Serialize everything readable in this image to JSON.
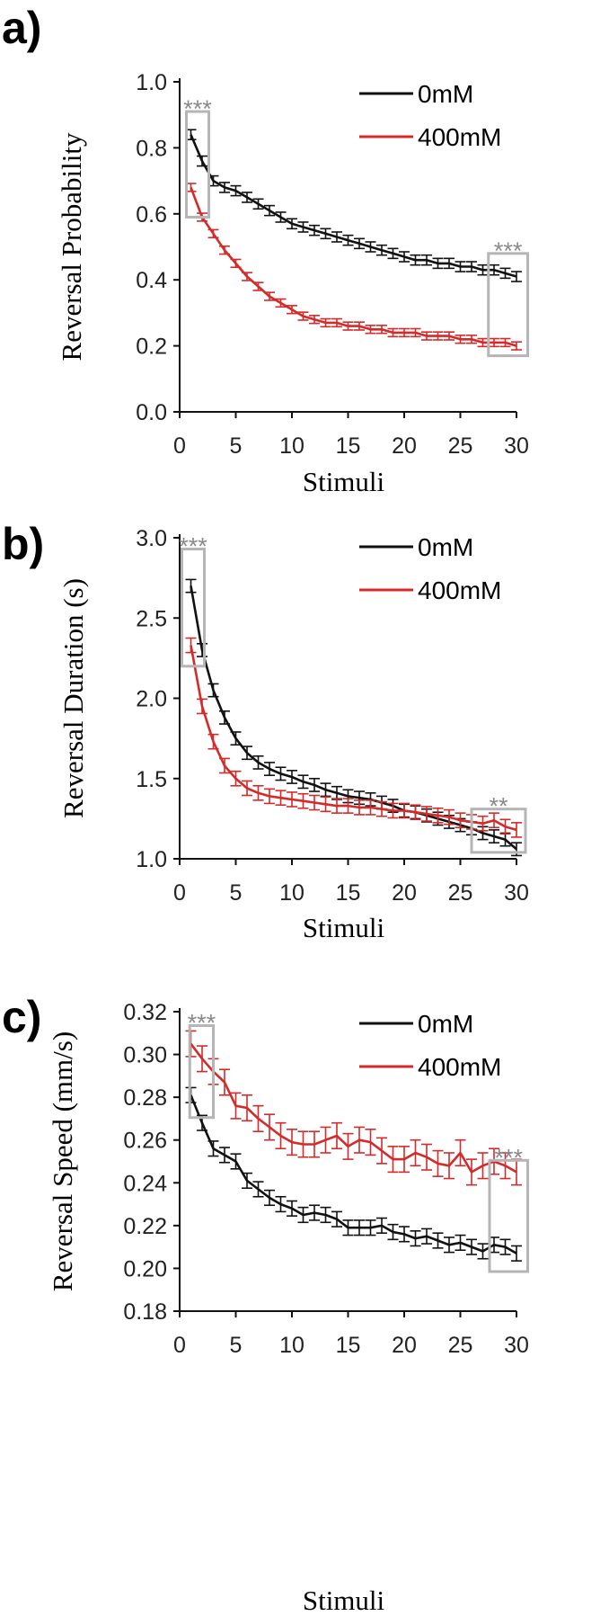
{
  "colors": {
    "control": "#111111",
    "treated": "#d42a2a",
    "sig_box": "#b5b5b5",
    "sig_text": "#8a8a8a"
  },
  "chart_data": [
    {
      "type": "line",
      "panel": "a)",
      "title": "",
      "xlabel": "Stimuli",
      "ylabel": "Reversal Probability",
      "xlim": [
        0,
        30
      ],
      "ylim": [
        0.0,
        1.0
      ],
      "xticks": [
        0,
        5,
        10,
        15,
        20,
        25,
        30
      ],
      "yticks": [
        0.0,
        0.2,
        0.4,
        0.6,
        0.8,
        1.0
      ],
      "ytick_labels": [
        "0.0",
        "0.2",
        "0.4",
        "0.6",
        "0.8",
        "1.0"
      ],
      "legend": "top-right",
      "x": [
        1,
        2,
        3,
        4,
        5,
        6,
        7,
        8,
        9,
        10,
        11,
        12,
        13,
        14,
        15,
        16,
        17,
        18,
        19,
        20,
        21,
        22,
        23,
        24,
        25,
        26,
        27,
        28,
        29,
        30
      ],
      "series": [
        {
          "name": "0mM",
          "color": "#111111",
          "error": 0.015,
          "values": [
            0.84,
            0.76,
            0.7,
            0.68,
            0.67,
            0.65,
            0.63,
            0.61,
            0.59,
            0.57,
            0.56,
            0.55,
            0.54,
            0.53,
            0.52,
            0.51,
            0.5,
            0.49,
            0.48,
            0.47,
            0.46,
            0.46,
            0.45,
            0.45,
            0.44,
            0.44,
            0.43,
            0.43,
            0.42,
            0.41
          ]
        },
        {
          "name": "400mM",
          "color": "#d42a2a",
          "error": 0.012,
          "values": [
            0.68,
            0.59,
            0.54,
            0.49,
            0.45,
            0.41,
            0.38,
            0.35,
            0.33,
            0.31,
            0.29,
            0.28,
            0.27,
            0.27,
            0.26,
            0.26,
            0.25,
            0.25,
            0.24,
            0.24,
            0.24,
            0.23,
            0.23,
            0.23,
            0.22,
            0.22,
            0.21,
            0.21,
            0.21,
            0.2
          ]
        }
      ],
      "annotations": [
        {
          "text": "***",
          "x_range": [
            0.6,
            2.6
          ],
          "y_range": [
            0.59,
            0.91
          ]
        },
        {
          "text": "***",
          "x_range": [
            27.5,
            31.0
          ],
          "y_range": [
            0.17,
            0.48
          ]
        }
      ]
    },
    {
      "type": "line",
      "panel": "b)",
      "title": "",
      "xlabel": "Stimuli",
      "ylabel": "Reversal Duration (s)",
      "xlim": [
        0,
        30
      ],
      "ylim": [
        1.0,
        3.0
      ],
      "xticks": [
        0,
        5,
        10,
        15,
        20,
        25,
        30
      ],
      "yticks": [
        1.0,
        1.5,
        2.0,
        2.5,
        3.0
      ],
      "ytick_labels": [
        "1.0",
        "1.5",
        "2.0",
        "2.5",
        "3.0"
      ],
      "legend": "top-right",
      "x": [
        1,
        2,
        3,
        4,
        5,
        6,
        7,
        8,
        9,
        10,
        11,
        12,
        13,
        14,
        15,
        16,
        17,
        18,
        19,
        20,
        21,
        22,
        23,
        24,
        25,
        26,
        27,
        28,
        29,
        30
      ],
      "series": [
        {
          "name": "0mM",
          "color": "#111111",
          "error": 0.04,
          "values": [
            2.7,
            2.3,
            2.05,
            1.88,
            1.75,
            1.66,
            1.6,
            1.56,
            1.53,
            1.51,
            1.48,
            1.46,
            1.43,
            1.41,
            1.39,
            1.38,
            1.37,
            1.35,
            1.33,
            1.3,
            1.29,
            1.27,
            1.25,
            1.23,
            1.21,
            1.19,
            1.16,
            1.14,
            1.12,
            1.06
          ]
        },
        {
          "name": "400mM",
          "color": "#d42a2a",
          "error": 0.045,
          "values": [
            2.33,
            1.95,
            1.73,
            1.58,
            1.5,
            1.44,
            1.41,
            1.39,
            1.38,
            1.37,
            1.36,
            1.35,
            1.34,
            1.33,
            1.33,
            1.32,
            1.32,
            1.31,
            1.3,
            1.3,
            1.29,
            1.28,
            1.27,
            1.26,
            1.24,
            1.23,
            1.22,
            1.24,
            1.2,
            1.18
          ]
        }
      ],
      "annotations": [
        {
          "text": "***",
          "x_range": [
            0.2,
            2.2
          ],
          "y_range": [
            2.2,
            2.93
          ]
        },
        {
          "text": "**",
          "x_range": [
            26.0,
            30.8
          ],
          "y_range": [
            1.04,
            1.31
          ]
        }
      ]
    },
    {
      "type": "line",
      "panel": "c)",
      "title": "",
      "xlabel": "Stimuli",
      "ylabel": "Reversal Speed (mm/s)",
      "xlim": [
        0,
        30
      ],
      "ylim": [
        0.18,
        0.32
      ],
      "xticks": [
        0,
        5,
        10,
        15,
        20,
        25,
        30
      ],
      "yticks": [
        0.18,
        0.2,
        0.22,
        0.24,
        0.26,
        0.28,
        0.3,
        0.32
      ],
      "ytick_labels": [
        "0.18",
        "0.20",
        "0.22",
        "0.24",
        "0.26",
        "0.28",
        "0.30",
        "0.32"
      ],
      "legend": "top-right",
      "x": [
        1,
        2,
        3,
        4,
        5,
        6,
        7,
        8,
        9,
        10,
        11,
        12,
        13,
        14,
        15,
        16,
        17,
        18,
        19,
        20,
        21,
        22,
        23,
        24,
        25,
        26,
        27,
        28,
        29,
        30
      ],
      "series": [
        {
          "name": "0mM",
          "color": "#111111",
          "error": 0.0035,
          "values": [
            0.281,
            0.268,
            0.256,
            0.253,
            0.25,
            0.241,
            0.237,
            0.233,
            0.23,
            0.228,
            0.225,
            0.226,
            0.225,
            0.223,
            0.219,
            0.219,
            0.219,
            0.22,
            0.217,
            0.216,
            0.214,
            0.215,
            0.213,
            0.211,
            0.212,
            0.21,
            0.208,
            0.211,
            0.21,
            0.207
          ]
        },
        {
          "name": "400mM",
          "color": "#d42a2a",
          "error": 0.006,
          "values": [
            0.305,
            0.298,
            0.292,
            0.287,
            0.276,
            0.275,
            0.27,
            0.266,
            0.262,
            0.259,
            0.258,
            0.258,
            0.26,
            0.262,
            0.257,
            0.26,
            0.259,
            0.255,
            0.251,
            0.251,
            0.254,
            0.252,
            0.249,
            0.248,
            0.254,
            0.245,
            0.248,
            0.25,
            0.248,
            0.245
          ]
        }
      ],
      "annotations": [
        {
          "text": "***",
          "x_range": [
            0.9,
            3.0
          ],
          "y_range": [
            0.2705,
            0.3135
          ]
        },
        {
          "text": "***",
          "x_range": [
            27.6,
            31.0
          ],
          "y_range": [
            0.1985,
            0.2505
          ]
        }
      ]
    }
  ]
}
